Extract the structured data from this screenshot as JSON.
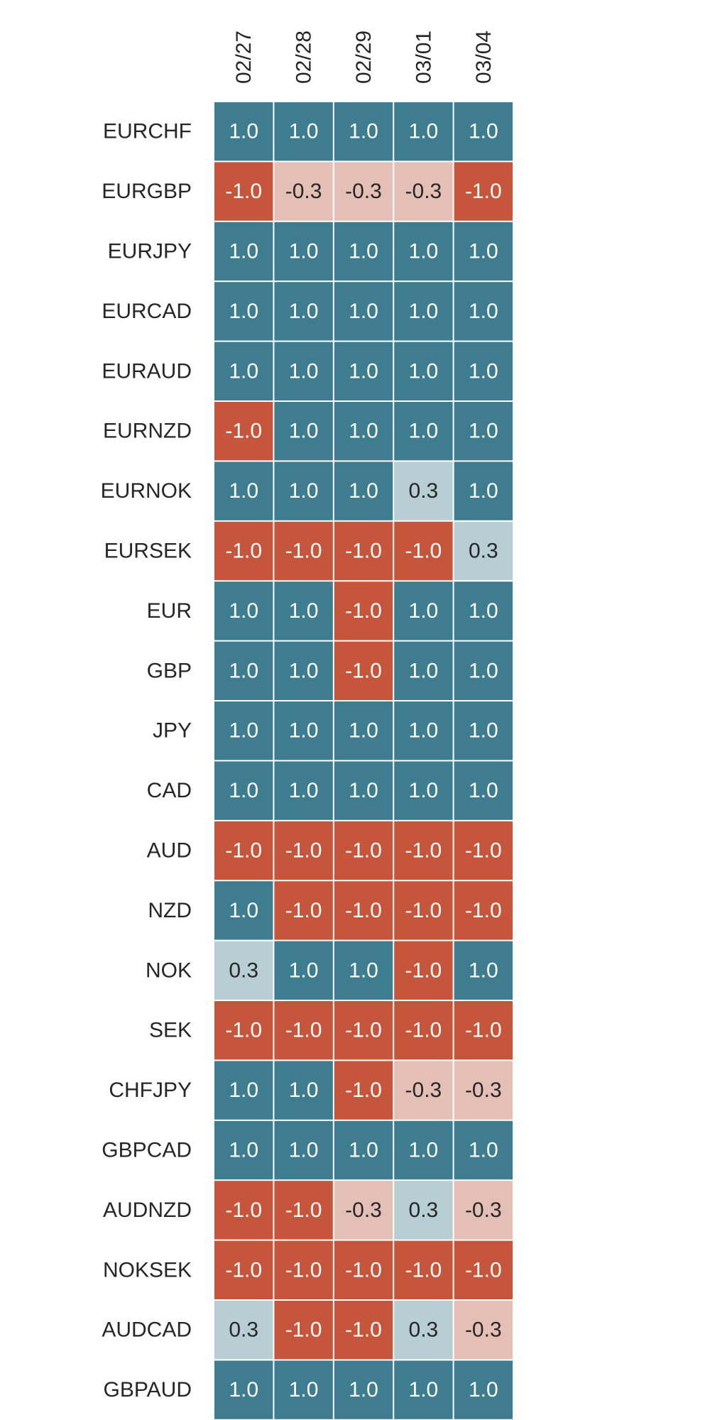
{
  "chart_data": {
    "type": "heatmap",
    "title": "",
    "xlabel": "",
    "ylabel": "",
    "columns": [
      "02/27",
      "02/28",
      "02/29",
      "03/01",
      "03/04"
    ],
    "rows": [
      "EURCHF",
      "EURGBP",
      "EURJPY",
      "EURCAD",
      "EURAUD",
      "EURNZD",
      "EURNOK",
      "EURSEK",
      "EUR",
      "GBP",
      "JPY",
      "CAD",
      "AUD",
      "NZD",
      "NOK",
      "SEK",
      "CHFJPY",
      "GBPCAD",
      "AUDNZD",
      "NOKSEK",
      "AUDCAD",
      "GBPAUD"
    ],
    "values": [
      [
        1.0,
        1.0,
        1.0,
        1.0,
        1.0
      ],
      [
        -1.0,
        -0.3,
        -0.3,
        -0.3,
        -1.0
      ],
      [
        1.0,
        1.0,
        1.0,
        1.0,
        1.0
      ],
      [
        1.0,
        1.0,
        1.0,
        1.0,
        1.0
      ],
      [
        1.0,
        1.0,
        1.0,
        1.0,
        1.0
      ],
      [
        -1.0,
        1.0,
        1.0,
        1.0,
        1.0
      ],
      [
        1.0,
        1.0,
        1.0,
        0.3,
        1.0
      ],
      [
        -1.0,
        -1.0,
        -1.0,
        -1.0,
        0.3
      ],
      [
        1.0,
        1.0,
        -1.0,
        1.0,
        1.0
      ],
      [
        1.0,
        1.0,
        -1.0,
        1.0,
        1.0
      ],
      [
        1.0,
        1.0,
        1.0,
        1.0,
        1.0
      ],
      [
        1.0,
        1.0,
        1.0,
        1.0,
        1.0
      ],
      [
        -1.0,
        -1.0,
        -1.0,
        -1.0,
        -1.0
      ],
      [
        1.0,
        -1.0,
        -1.0,
        -1.0,
        -1.0
      ],
      [
        0.3,
        1.0,
        1.0,
        -1.0,
        1.0
      ],
      [
        -1.0,
        -1.0,
        -1.0,
        -1.0,
        -1.0
      ],
      [
        1.0,
        1.0,
        -1.0,
        -0.3,
        -0.3
      ],
      [
        1.0,
        1.0,
        1.0,
        1.0,
        1.0
      ],
      [
        -1.0,
        -1.0,
        -0.3,
        0.3,
        -0.3
      ],
      [
        -1.0,
        -1.0,
        -1.0,
        -1.0,
        -1.0
      ],
      [
        0.3,
        -1.0,
        -1.0,
        0.3,
        -0.3
      ],
      [
        1.0,
        1.0,
        1.0,
        1.0,
        1.0
      ]
    ],
    "value_format": "one decimal",
    "color_scale": {
      "1.0": "#3e7d90",
      "0.3": "#b7ced4",
      "-0.3": "#e4bfb6",
      "-1.0": "#c5553b"
    },
    "text_colors": {
      "dark_cell": "#ffffff",
      "light_cell": "#262626"
    },
    "grid_line_color": "#ffffff",
    "legend": "none"
  }
}
